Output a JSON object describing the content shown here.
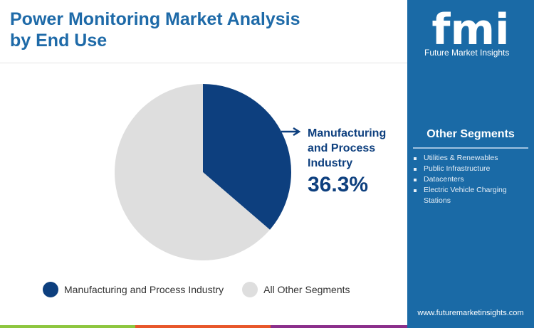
{
  "title": "Power Monitoring Market Analysis by End Use",
  "brand": {
    "logo_text": "fmi",
    "name": "Future Market Insights",
    "url": "www.futuremarketinsights.com"
  },
  "other_segments": {
    "title": "Other Segments",
    "items": [
      "Utilities & Renewables",
      "Public Infrastructure",
      "Datacenters",
      "Electric Vehicle Charging Stations"
    ]
  },
  "colors": {
    "primary": "#0d3f7e",
    "other": "#dedede",
    "panel": "#1a6aa6",
    "bars": [
      "#8dc63f",
      "#e8572a",
      "#8b2f8b",
      "#1a6aa6"
    ]
  },
  "chart_data": {
    "type": "pie",
    "categories": [
      "Manufacturing and Process Industry",
      "All Other Segments"
    ],
    "values": [
      36.3,
      63.7
    ],
    "callout": {
      "label": "Manufacturing and Process Industry",
      "value": "36.3%"
    },
    "legend": "bottom"
  }
}
